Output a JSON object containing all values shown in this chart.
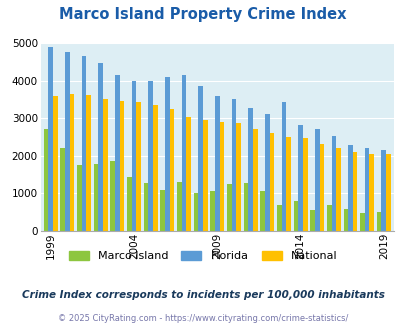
{
  "title": "Marco Island Property Crime Index",
  "subtitle": "Crime Index corresponds to incidents per 100,000 inhabitants",
  "footer": "© 2025 CityRating.com - https://www.cityrating.com/crime-statistics/",
  "years": [
    1999,
    2000,
    2001,
    2002,
    2003,
    2004,
    2005,
    2006,
    2007,
    2008,
    2009,
    2010,
    2011,
    2012,
    2013,
    2014,
    2015,
    2016,
    2017,
    2018,
    2019
  ],
  "marco_island": [
    2700,
    2200,
    1750,
    1780,
    1850,
    1430,
    1280,
    1080,
    1310,
    1010,
    1050,
    1250,
    1270,
    1050,
    690,
    790,
    560,
    700,
    580,
    480,
    500
  ],
  "florida": [
    4900,
    4760,
    4650,
    4470,
    4150,
    4000,
    4000,
    4100,
    4150,
    3850,
    3580,
    3500,
    3280,
    3100,
    3420,
    2820,
    2700,
    2530,
    2290,
    2210,
    2150
  ],
  "national": [
    3600,
    3650,
    3620,
    3500,
    3460,
    3440,
    3350,
    3250,
    3020,
    2950,
    2900,
    2870,
    2720,
    2600,
    2500,
    2470,
    2320,
    2200,
    2110,
    2050,
    2050
  ],
  "bar_width": 0.28,
  "colors": {
    "marco_island": "#8dc63f",
    "florida": "#5b9bd5",
    "national": "#ffc000"
  },
  "background_color": "#ddeef4",
  "ylim": [
    0,
    5000
  ],
  "yticks": [
    0,
    1000,
    2000,
    3000,
    4000,
    5000
  ],
  "title_color": "#1a5ca8",
  "subtitle_color": "#1a3a5c",
  "footer_color": "#7777aa",
  "legend_labels": [
    "Marco Island",
    "Florida",
    "National"
  ],
  "xtick_years": [
    1999,
    2004,
    2009,
    2014,
    2019
  ]
}
